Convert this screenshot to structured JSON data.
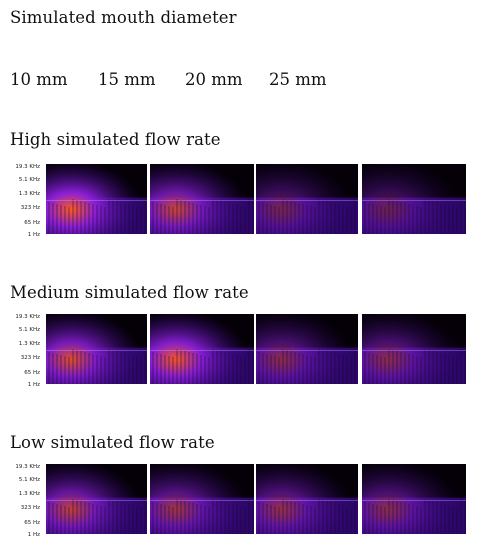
{
  "header": {
    "title": "Simulated mouth diameter"
  },
  "diameters": [
    "10 mm",
    "15 mm",
    "20 mm",
    "25 mm"
  ],
  "frequency_ticks": [
    "19.3 KHz",
    "5.1 KHz",
    "1.3 KHz",
    "323 Hz",
    "65 Hz",
    "1 Hz"
  ],
  "rows": [
    {
      "title": "High simulated flow rate",
      "intensity": [
        1.0,
        0.75,
        0.35,
        0.3
      ]
    },
    {
      "title": "Medium simulated flow rate",
      "intensity": [
        0.85,
        0.95,
        0.45,
        0.45
      ]
    },
    {
      "title": "Low simulated flow rate",
      "intensity": [
        0.7,
        0.55,
        0.5,
        0.45
      ]
    }
  ],
  "colors": {
    "background": "#050008",
    "low": "#3a0a8a",
    "mid": "#8a1fd6",
    "high": "#ff5a1e"
  }
}
